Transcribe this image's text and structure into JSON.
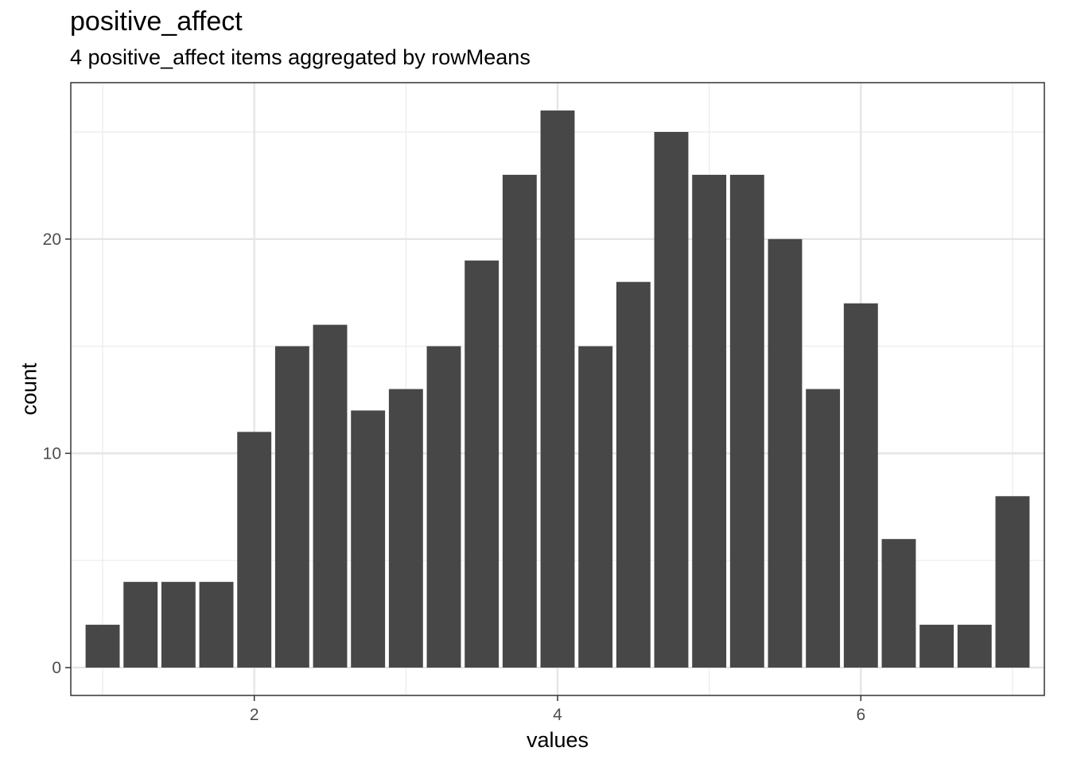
{
  "chart_data": {
    "type": "bar",
    "title": "positive_affect",
    "subtitle": "4 positive_affect items aggregated by rowMeans",
    "xlabel": "values",
    "ylabel": "count",
    "bin_width": 0.25,
    "x": [
      1,
      1.25,
      1.5,
      1.75,
      2,
      2.25,
      2.5,
      2.75,
      3,
      3.25,
      3.5,
      3.75,
      4,
      4.25,
      4.5,
      4.75,
      5,
      5.25,
      5.5,
      5.75,
      6,
      6.25,
      6.5,
      6.75,
      7
    ],
    "values": [
      2,
      4,
      4,
      4,
      11,
      15,
      16,
      12,
      13,
      15,
      19,
      23,
      26,
      15,
      18,
      25,
      23,
      23,
      20,
      13,
      17,
      6,
      2,
      2,
      8
    ],
    "xlim": [
      0.79,
      7.21
    ],
    "ylim": [
      -1.3,
      27.3
    ],
    "xticks": [
      2,
      4,
      6
    ],
    "xtick_labels": [
      "2",
      "4",
      "6"
    ],
    "yticks": [
      0,
      10,
      20
    ],
    "ytick_labels": [
      "0",
      "10",
      "20"
    ],
    "grid": true,
    "bar_color": "#474747",
    "theme": "bw"
  }
}
